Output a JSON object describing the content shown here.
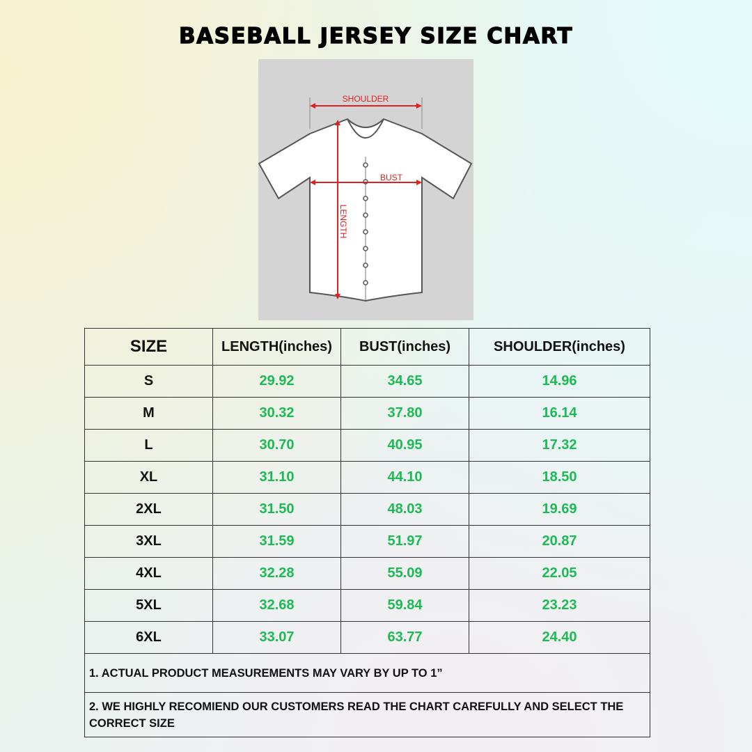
{
  "header": {
    "title": "BASEBALL JERSEY SIZE CHART"
  },
  "diagram": {
    "shoulder": "SHOULDER",
    "bust": "BUST",
    "length": "LENGTH"
  },
  "table": {
    "columns": [
      "SIZE",
      "LENGTH(inches)",
      "BUST(inches)",
      "SHOULDER(inches)"
    ],
    "rows": [
      [
        "S",
        "29.92",
        "34.65",
        "14.96"
      ],
      [
        "M",
        "30.32",
        "37.80",
        "16.14"
      ],
      [
        "L",
        "30.70",
        "40.95",
        "17.32"
      ],
      [
        "XL",
        "31.10",
        "44.10",
        "18.50"
      ],
      [
        "2XL",
        "31.50",
        "48.03",
        "19.69"
      ],
      [
        "3XL",
        "31.59",
        "51.97",
        "20.87"
      ],
      [
        "4XL",
        "32.28",
        "55.09",
        "22.05"
      ],
      [
        "5XL",
        "32.68",
        "59.84",
        "23.23"
      ],
      [
        "6XL",
        "33.07",
        "63.77",
        "24.40"
      ]
    ],
    "notes": [
      "1. ACTUAL PRODUCT MEASUREMENTS MAY VARY BY UP TO 1”",
      "2. WE HIGHLY RECOMIEND OUR CUSTOMERS READ THE CHART CAREFULLY AND SELECT THE CORRECT SIZE"
    ]
  }
}
